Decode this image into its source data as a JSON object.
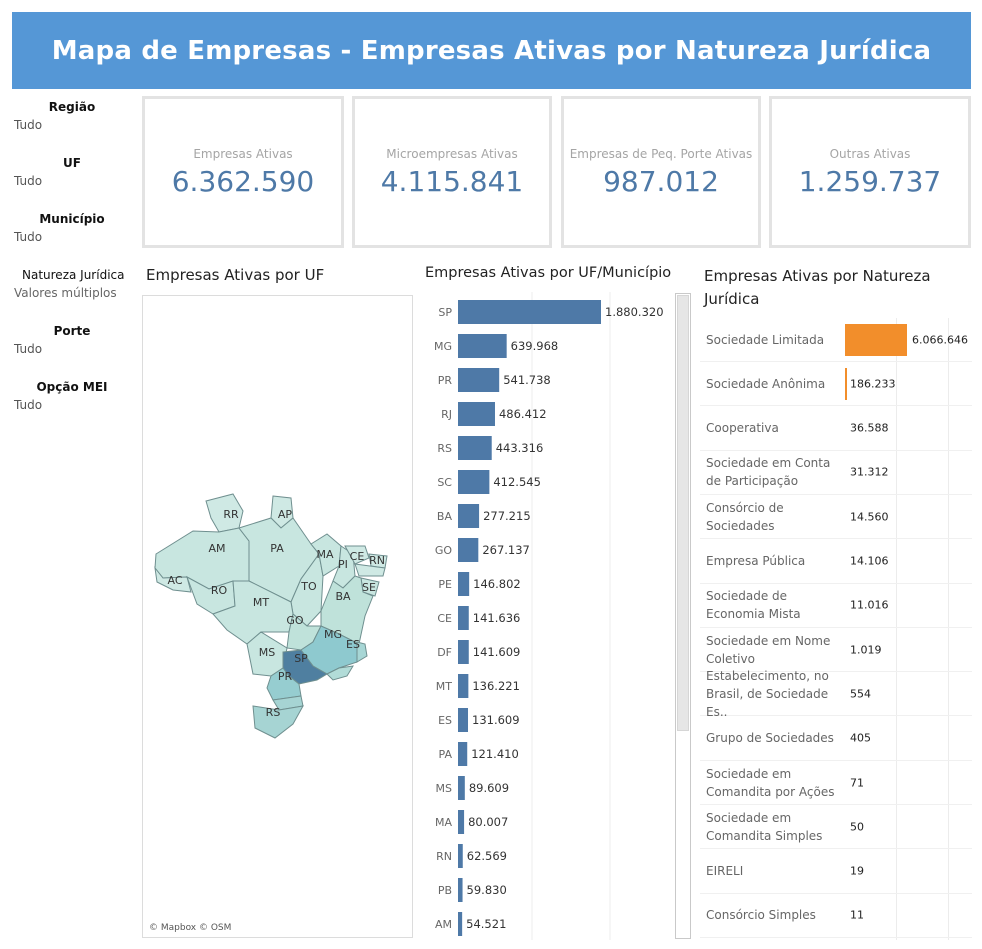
{
  "header": {
    "title": "Mapa de Empresas - Empresas Ativas por Natureza Jurídica"
  },
  "filters": [
    {
      "label": "Região",
      "value": "Tudo"
    },
    {
      "label": "UF",
      "value": "Tudo"
    },
    {
      "label": "Município",
      "value": "Tudo"
    },
    {
      "label": "Natureza Jurídica",
      "value": "Valores múltiplos"
    },
    {
      "label": "Porte",
      "value": "Tudo"
    },
    {
      "label": "Opção MEI",
      "value": "Tudo"
    }
  ],
  "kpis": [
    {
      "label": "Empresas Ativas",
      "value": "6.362.590"
    },
    {
      "label": "Microempresas Ativas",
      "value": "4.115.841"
    },
    {
      "label": "Empresas de Peq. Porte Ativas",
      "value": "987.012"
    },
    {
      "label": "Outras Ativas",
      "value": "1.259.737"
    }
  ],
  "map": {
    "title": "Empresas Ativas por UF",
    "credit": "© Mapbox © OSM",
    "states": [
      "RR",
      "AP",
      "AM",
      "PA",
      "MA",
      "CE",
      "RN",
      "PI",
      "AC",
      "RO",
      "TO",
      "SE",
      "MT",
      "BA",
      "GO",
      "MG",
      "ES",
      "MS",
      "SP",
      "PR",
      "RS"
    ]
  },
  "uf_chart": {
    "title": "Empresas Ativas por UF/Município",
    "color": "#4e79a7",
    "max": 1880320,
    "rows": [
      {
        "uf": "SP",
        "value": 1880320,
        "label": "1.880.320"
      },
      {
        "uf": "MG",
        "value": 639968,
        "label": "639.968"
      },
      {
        "uf": "PR",
        "value": 541738,
        "label": "541.738"
      },
      {
        "uf": "RJ",
        "value": 486412,
        "label": "486.412"
      },
      {
        "uf": "RS",
        "value": 443316,
        "label": "443.316"
      },
      {
        "uf": "SC",
        "value": 412545,
        "label": "412.545"
      },
      {
        "uf": "BA",
        "value": 277215,
        "label": "277.215"
      },
      {
        "uf": "GO",
        "value": 267137,
        "label": "267.137"
      },
      {
        "uf": "PE",
        "value": 146802,
        "label": "146.802"
      },
      {
        "uf": "CE",
        "value": 141636,
        "label": "141.636"
      },
      {
        "uf": "DF",
        "value": 141609,
        "label": "141.609"
      },
      {
        "uf": "MT",
        "value": 136221,
        "label": "136.221"
      },
      {
        "uf": "ES",
        "value": 131609,
        "label": "131.609"
      },
      {
        "uf": "PA",
        "value": 121410,
        "label": "121.410"
      },
      {
        "uf": "MS",
        "value": 89609,
        "label": "89.609"
      },
      {
        "uf": "MA",
        "value": 80007,
        "label": "80.007"
      },
      {
        "uf": "RN",
        "value": 62569,
        "label": "62.569"
      },
      {
        "uf": "PB",
        "value": 59830,
        "label": "59.830"
      },
      {
        "uf": "AM",
        "value": 54521,
        "label": "54.521"
      }
    ]
  },
  "nat_chart": {
    "title": "Empresas Ativas por Natureza Jurídica",
    "max": 6066646,
    "highlight_color": "#f28e2b",
    "rows": [
      {
        "label": "Sociedade Limitada",
        "value": 6066646,
        "display": "6.066.646"
      },
      {
        "label": "Sociedade Anônima",
        "value": 186233,
        "display": "186.233"
      },
      {
        "label": "Cooperativa",
        "value": 36588,
        "display": "36.588"
      },
      {
        "label": "Sociedade em Conta de Participação",
        "value": 31312,
        "display": "31.312"
      },
      {
        "label": "Consórcio de Sociedades",
        "value": 14560,
        "display": "14.560"
      },
      {
        "label": "Empresa Pública",
        "value": 14106,
        "display": "14.106"
      },
      {
        "label": "Sociedade de Economia Mista",
        "value": 11016,
        "display": "11.016"
      },
      {
        "label": "Sociedade em Nome Coletivo",
        "value": 1019,
        "display": "1.019"
      },
      {
        "label": "Estabelecimento, no Brasil, de Sociedade Es..",
        "value": 554,
        "display": "554"
      },
      {
        "label": "Grupo de Sociedades",
        "value": 405,
        "display": "405"
      },
      {
        "label": "Sociedade em Comandita por Ações",
        "value": 71,
        "display": "71"
      },
      {
        "label": "Sociedade em Comandita Simples",
        "value": 50,
        "display": "50"
      },
      {
        "label": "EIRELI",
        "value": 19,
        "display": "19"
      },
      {
        "label": "Consórcio Simples",
        "value": 11,
        "display": "11"
      }
    ]
  }
}
